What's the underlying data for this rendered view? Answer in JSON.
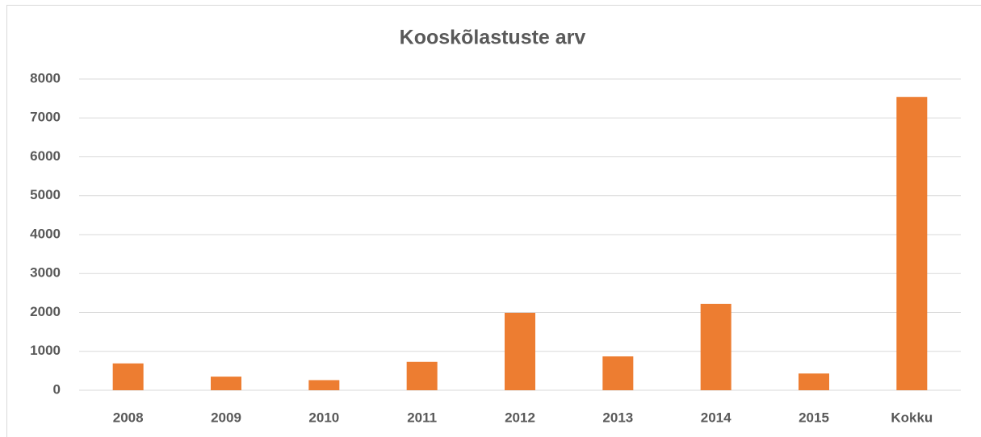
{
  "chart_data": {
    "type": "bar",
    "title": "Kooskõlastuste arv",
    "categories": [
      "2008",
      "2009",
      "2010",
      "2011",
      "2012",
      "2013",
      "2014",
      "2015",
      "Kokku"
    ],
    "values": [
      690,
      350,
      260,
      730,
      1990,
      870,
      2220,
      430,
      7540
    ],
    "color": "#ed7d31",
    "ylim": [
      0,
      8000
    ],
    "yticks": [
      0,
      1000,
      2000,
      3000,
      4000,
      5000,
      6000,
      7000,
      8000
    ],
    "grid": true
  }
}
